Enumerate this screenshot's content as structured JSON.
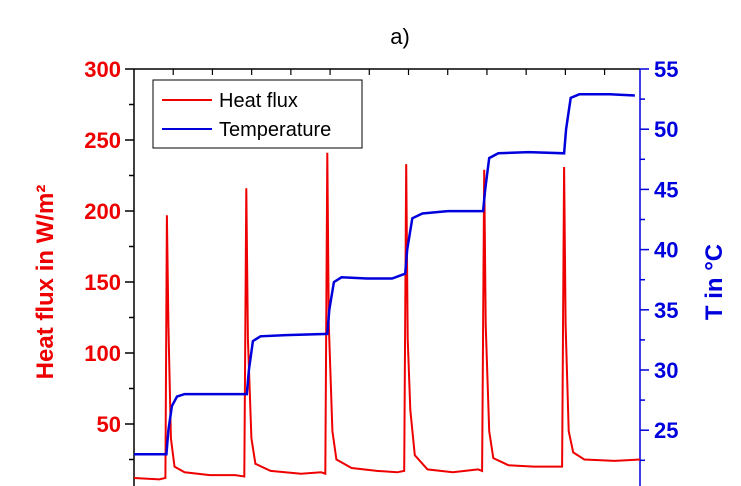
{
  "chart_data": {
    "type": "line",
    "title": "a)",
    "ylabel_left": "Heat flux in W/m²",
    "ylabel_right": "T in °C",
    "ylim_left": [
      0,
      300
    ],
    "ylim_right": [
      20,
      55
    ],
    "yticks_left": [
      "50",
      "100",
      "150",
      "200",
      "250",
      "300"
    ],
    "yticks_right": [
      "25",
      "30",
      "35",
      "40",
      "45",
      "50",
      "55"
    ],
    "xlim": [
      0,
      100
    ],
    "grid": false,
    "legend_position": "top-left",
    "colors": {
      "heat_flux": "#ee0000",
      "temperature": "#0000dd"
    },
    "series": [
      {
        "name": "Heat flux",
        "axis": "left",
        "color": "#ee0000",
        "points": [
          [
            0,
            12
          ],
          [
            5,
            11
          ],
          [
            6.2,
            12
          ],
          [
            6.5,
            197
          ],
          [
            6.8,
            120
          ],
          [
            7.3,
            40
          ],
          [
            8,
            20
          ],
          [
            10,
            16
          ],
          [
            15,
            14
          ],
          [
            20,
            14
          ],
          [
            21.8,
            13
          ],
          [
            22.2,
            216
          ],
          [
            22.5,
            110
          ],
          [
            23.2,
            40
          ],
          [
            24,
            22
          ],
          [
            27,
            17
          ],
          [
            33,
            15
          ],
          [
            37,
            16
          ],
          [
            37.8,
            15
          ],
          [
            38.2,
            241
          ],
          [
            38.5,
            120
          ],
          [
            39.2,
            45
          ],
          [
            40,
            25
          ],
          [
            43,
            19
          ],
          [
            48,
            17
          ],
          [
            52,
            16
          ],
          [
            53.4,
            17
          ],
          [
            53.8,
            233
          ],
          [
            54.1,
            110
          ],
          [
            54.6,
            60
          ],
          [
            55.5,
            28
          ],
          [
            58,
            18
          ],
          [
            63,
            16
          ],
          [
            68,
            18
          ],
          [
            68.8,
            17
          ],
          [
            69.2,
            229
          ],
          [
            69.5,
            120
          ],
          [
            70.2,
            45
          ],
          [
            71,
            26
          ],
          [
            74,
            21
          ],
          [
            79,
            20
          ],
          [
            84,
            20
          ],
          [
            84.6,
            20
          ],
          [
            85,
            231
          ],
          [
            85.3,
            120
          ],
          [
            85.9,
            45
          ],
          [
            86.8,
            30
          ],
          [
            89,
            25
          ],
          [
            95,
            24
          ],
          [
            100,
            25
          ]
        ]
      },
      {
        "name": "Temperature",
        "axis": "right",
        "color": "#0000dd",
        "points": [
          [
            0,
            23
          ],
          [
            6.4,
            23
          ],
          [
            6.8,
            25
          ],
          [
            7.5,
            27
          ],
          [
            8.5,
            27.8
          ],
          [
            10,
            28
          ],
          [
            15,
            28
          ],
          [
            22.3,
            28
          ],
          [
            22.7,
            30
          ],
          [
            23.5,
            32.4
          ],
          [
            25,
            32.8
          ],
          [
            30,
            32.9
          ],
          [
            38.2,
            33
          ],
          [
            38.6,
            35
          ],
          [
            39.5,
            37.3
          ],
          [
            41,
            37.7
          ],
          [
            46,
            37.6
          ],
          [
            51,
            37.6
          ],
          [
            53.6,
            38
          ],
          [
            54,
            40
          ],
          [
            55,
            42.6
          ],
          [
            57,
            43
          ],
          [
            62,
            43.2
          ],
          [
            69,
            43.2
          ],
          [
            69.4,
            45
          ],
          [
            70.2,
            47.6
          ],
          [
            72,
            48
          ],
          [
            78,
            48.1
          ],
          [
            85,
            48
          ],
          [
            85.4,
            50
          ],
          [
            86.3,
            52.6
          ],
          [
            88,
            52.9
          ],
          [
            94,
            52.9
          ],
          [
            99,
            52.8
          ]
        ]
      }
    ]
  }
}
